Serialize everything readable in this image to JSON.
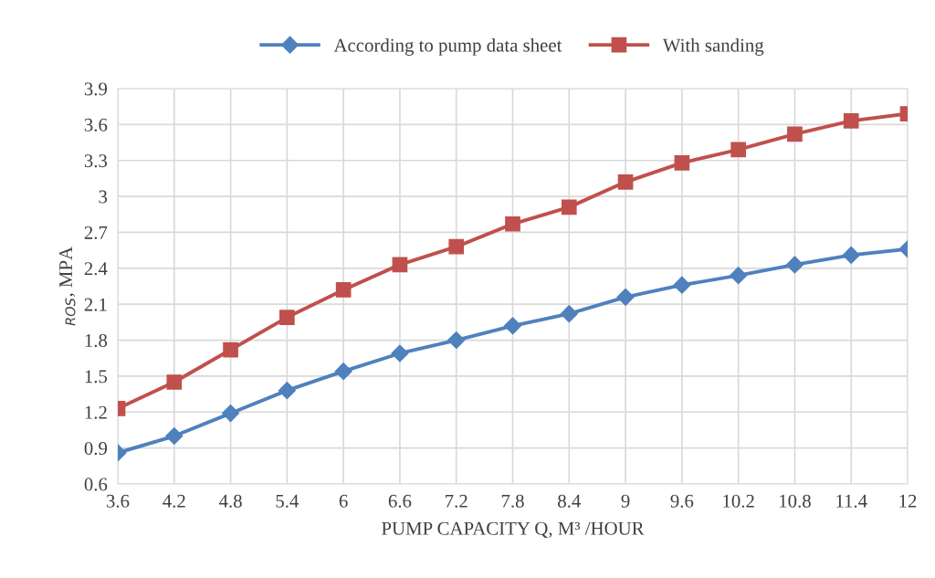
{
  "chart_data": {
    "type": "line",
    "categories": [
      "3.6",
      "4.2",
      "4.8",
      "5.4",
      "6",
      "6.6",
      "7.2",
      "7.8",
      "8.4",
      "9",
      "9.6",
      "10.2",
      "10.8",
      "11.4",
      "12"
    ],
    "series": [
      {
        "name": "According to pump data sheet",
        "color": "#4f81bd",
        "marker": "diamond",
        "values": [
          0.86,
          1.0,
          1.19,
          1.38,
          1.54,
          1.69,
          1.8,
          1.92,
          2.02,
          2.16,
          2.26,
          2.34,
          2.43,
          2.51,
          2.56
        ]
      },
      {
        "name": "With sanding",
        "color": "#c0504d",
        "marker": "square",
        "values": [
          1.23,
          1.45,
          1.72,
          1.99,
          2.22,
          2.43,
          2.58,
          2.77,
          2.91,
          3.12,
          3.28,
          3.39,
          3.52,
          3.63,
          3.69
        ]
      }
    ],
    "xlabel": "PUMP CAPACITY Q, M³ /HOUR",
    "ylabel": "$_{ROS}$, MPA",
    "ylim": [
      0.6,
      3.9
    ],
    "yticks": [
      0.6,
      0.9,
      1.2,
      1.5,
      1.8,
      2.1,
      2.4,
      2.7,
      3,
      3.3,
      3.6,
      3.9
    ],
    "grid": true,
    "legend": "top",
    "line_style": "solid"
  }
}
